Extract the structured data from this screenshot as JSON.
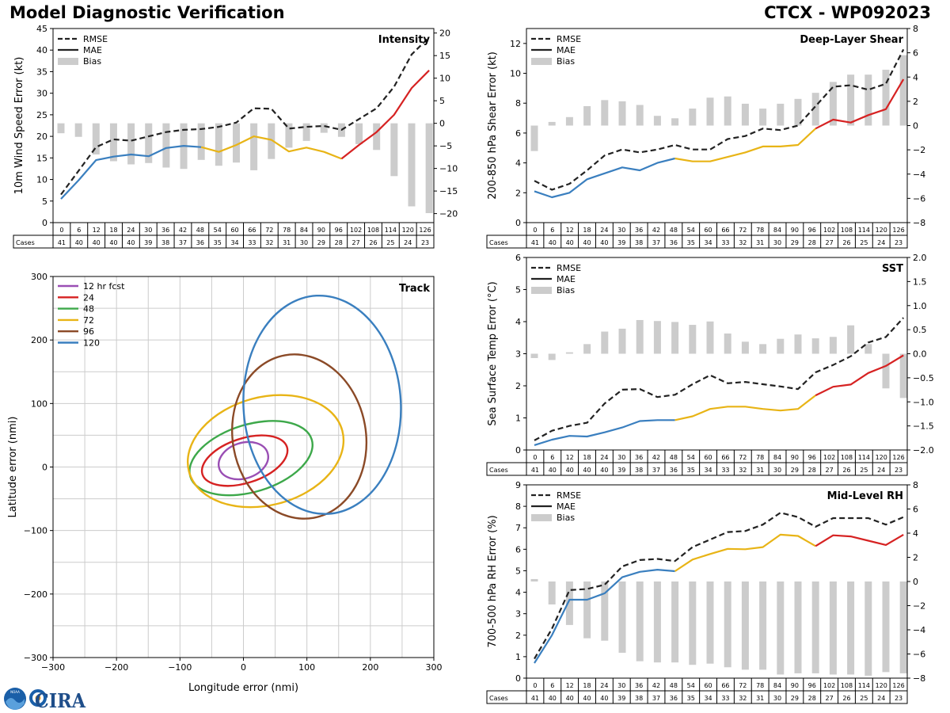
{
  "header": {
    "title": "Model Diagnostic Verification",
    "storm_id": "CTCX - WP092023"
  },
  "logos": {
    "noaa_text": "NOAA",
    "cira_text": "CIRA"
  },
  "colors": {
    "rmse": "#222222",
    "bias": "#cccccc",
    "seg1": "#3a7fbf",
    "seg2": "#e8b416",
    "seg3": "#d62222",
    "grid": "#cccccc"
  },
  "hours": [
    "0",
    "6",
    "12",
    "18",
    "24",
    "30",
    "36",
    "42",
    "48",
    "54",
    "60",
    "66",
    "72",
    "78",
    "84",
    "90",
    "96",
    "102",
    "108",
    "114",
    "120",
    "126"
  ],
  "cases_label": "Cases",
  "cases": [
    "41",
    "40",
    "40",
    "40",
    "40",
    "39",
    "38",
    "37",
    "36",
    "35",
    "34",
    "33",
    "32",
    "31",
    "30",
    "29",
    "28",
    "27",
    "26",
    "25",
    "24",
    "23"
  ],
  "chart_data": [
    {
      "id": "intensity",
      "type": "line",
      "title": "Intensity",
      "ylabel": "10m Wind Speed Error (kt)",
      "ylim": [
        0,
        45
      ],
      "yticks": [
        "0",
        "5",
        "10",
        "15",
        "20",
        "25",
        "30",
        "35",
        "40",
        "45"
      ],
      "y2lim": [
        -22,
        21
      ],
      "y2ticks": [
        "−20",
        "−15",
        "−10",
        "−5",
        "0",
        "5",
        "10",
        "15",
        "20"
      ],
      "legend": [
        "RMSE",
        "MAE",
        "Bias"
      ],
      "rmse": [
        6.5,
        12,
        17.5,
        19.3,
        19,
        20,
        21,
        21.5,
        21.7,
        22.2,
        23.2,
        26.5,
        26.4,
        21.8,
        22.2,
        22.4,
        21.5,
        24,
        26.5,
        31.5,
        39,
        43
      ],
      "mae": [
        5.5,
        9.8,
        14.5,
        15.3,
        15.8,
        15.4,
        17.3,
        17.8,
        17.5,
        16.4,
        18,
        20,
        19.2,
        16.5,
        17.4,
        16.4,
        14.8,
        18,
        21,
        25,
        31.2,
        35.3
      ],
      "bias": [
        -2.2,
        -3,
        -6.9,
        -8.4,
        -9.1,
        -8.8,
        -9.8,
        -10.1,
        -8.1,
        -9.4,
        -8.7,
        -10.4,
        -7.9,
        -5.4,
        -3.9,
        -2.1,
        -3,
        -4.6,
        -5.9,
        -11.7,
        -18.4,
        -19.9
      ]
    },
    {
      "id": "shear",
      "type": "line",
      "title": "Deep-Layer Shear",
      "ylabel": "200-850 hPa Shear Error (kt)",
      "ylim": [
        0,
        13
      ],
      "yticks": [
        "0",
        "2",
        "4",
        "6",
        "8",
        "10",
        "12"
      ],
      "y2lim": [
        -8,
        8
      ],
      "y2ticks": [
        "−8",
        "−6",
        "−4",
        "−2",
        "0",
        "2",
        "4",
        "6",
        "8"
      ],
      "legend": [
        "RMSE",
        "MAE",
        "Bias"
      ],
      "rmse": [
        2.8,
        2.2,
        2.6,
        3.5,
        4.5,
        4.9,
        4.7,
        4.9,
        5.2,
        4.9,
        4.9,
        5.6,
        5.8,
        6.3,
        6.2,
        6.5,
        7.8,
        9.1,
        9.2,
        8.9,
        9.3,
        11.6
      ],
      "mae": [
        2.1,
        1.7,
        2,
        2.9,
        3.3,
        3.7,
        3.5,
        4,
        4.3,
        4.1,
        4.1,
        4.4,
        4.7,
        5.1,
        5.1,
        5.2,
        6.3,
        6.9,
        6.7,
        7.2,
        7.6,
        9.6
      ],
      "bias": [
        -2.1,
        0.3,
        0.7,
        1.6,
        2.1,
        2,
        1.7,
        0.8,
        0.6,
        1.4,
        2.3,
        2.4,
        1.8,
        1.4,
        1.8,
        2.2,
        2.7,
        3.6,
        4.2,
        4.2,
        4.6,
        5.8
      ]
    },
    {
      "id": "sst",
      "type": "line",
      "title": "SST",
      "ylabel": "Sea Surface Temp Error (°C)",
      "ylim": [
        0,
        6
      ],
      "yticks": [
        "0",
        "1",
        "2",
        "3",
        "4",
        "5",
        "6"
      ],
      "y2lim": [
        -2,
        2
      ],
      "y2ticks": [
        "−2.0",
        "−1.5",
        "−1.0",
        "−0.5",
        "0.0",
        "0.5",
        "1.0",
        "1.5",
        "2.0"
      ],
      "legend": [
        "RMSE",
        "MAE",
        "Bias"
      ],
      "rmse": [
        0.3,
        0.6,
        0.75,
        0.85,
        1.45,
        1.88,
        1.9,
        1.65,
        1.72,
        2.05,
        2.33,
        2.08,
        2.12,
        2.05,
        1.98,
        1.9,
        2.42,
        2.65,
        2.92,
        3.35,
        3.52,
        4.12
      ],
      "mae": [
        0.15,
        0.32,
        0.44,
        0.42,
        0.55,
        0.7,
        0.9,
        0.93,
        0.93,
        1.05,
        1.28,
        1.35,
        1.35,
        1.28,
        1.23,
        1.28,
        1.7,
        1.97,
        2.04,
        2.4,
        2.62,
        2.95
      ],
      "bias": [
        -0.09,
        -0.13,
        0.03,
        0.2,
        0.46,
        0.52,
        0.7,
        0.68,
        0.66,
        0.6,
        0.67,
        0.42,
        0.25,
        0.2,
        0.31,
        0.4,
        0.32,
        0.35,
        0.59,
        0.2,
        -0.72,
        -0.92
      ]
    },
    {
      "id": "rh",
      "type": "line",
      "title": "Mid-Level RH",
      "ylabel": "700-500 hPa RH Error (%)",
      "ylim": [
        0,
        9
      ],
      "yticks": [
        "0",
        "1",
        "2",
        "3",
        "4",
        "5",
        "6",
        "7",
        "8",
        "9"
      ],
      "y2lim": [
        -8,
        8
      ],
      "y2ticks": [
        "−8",
        "−6",
        "−4",
        "−2",
        "0",
        "2",
        "4",
        "6",
        "8"
      ],
      "legend": [
        "RMSE",
        "MAE",
        "Bias"
      ],
      "rmse": [
        0.9,
        2.3,
        4.1,
        4.15,
        4.35,
        5.2,
        5.5,
        5.55,
        5.45,
        6.1,
        6.45,
        6.8,
        6.85,
        7.15,
        7.7,
        7.5,
        7.05,
        7.45,
        7.45,
        7.45,
        7.15,
        7.5
      ],
      "mae": [
        0.7,
        2,
        3.65,
        3.65,
        3.95,
        4.7,
        4.95,
        5.05,
        4.98,
        5.52,
        5.78,
        6.02,
        6,
        6.1,
        6.68,
        6.62,
        6.15,
        6.65,
        6.6,
        6.4,
        6.2,
        6.68
      ],
      "bias": [
        0.2,
        -1.9,
        -3.6,
        -4.7,
        -4.9,
        -5.9,
        -6.6,
        -6.7,
        -6.7,
        -6.9,
        -6.8,
        -7.1,
        -7.3,
        -7.3,
        -7.7,
        -7.6,
        -7.6,
        -7.7,
        -7.7,
        -7.8,
        -7.5,
        -7.6
      ]
    },
    {
      "id": "track",
      "type": "ellipses",
      "title": "Track",
      "xlabel": "Longitude error (nmi)",
      "ylabel": "Latitude error (nmi)",
      "xlim": [
        -300,
        300
      ],
      "ylim": [
        -300,
        300
      ],
      "xticks": [
        "−300",
        "−200",
        "−100",
        "0",
        "100",
        "200",
        "300"
      ],
      "yticks": [
        "−300",
        "−200",
        "−100",
        "0",
        "100",
        "200",
        "300"
      ],
      "ellipses": [
        {
          "name": "12 hr fcst",
          "color": "#9a4fb4",
          "cx": 0,
          "cy": 10,
          "rx": 40,
          "ry": 28,
          "rot": 18
        },
        {
          "name": "24",
          "color": "#d62222",
          "cx": 2,
          "cy": 10,
          "rx": 70,
          "ry": 35,
          "rot": 18
        },
        {
          "name": "48",
          "color": "#3da84a",
          "cx": 12,
          "cy": 14,
          "rx": 100,
          "ry": 53,
          "rot": 17
        },
        {
          "name": "72",
          "color": "#e8b416",
          "cx": 35,
          "cy": 25,
          "rx": 125,
          "ry": 85,
          "rot": 15
        },
        {
          "name": "96",
          "color": "#8b4a27",
          "cx": 88,
          "cy": 48,
          "rx": 105,
          "ry": 130,
          "rot": 10
        },
        {
          "name": "120",
          "color": "#3a7fbf",
          "cx": 124,
          "cy": 98,
          "rx": 124,
          "ry": 172,
          "rot": 3
        }
      ]
    }
  ]
}
